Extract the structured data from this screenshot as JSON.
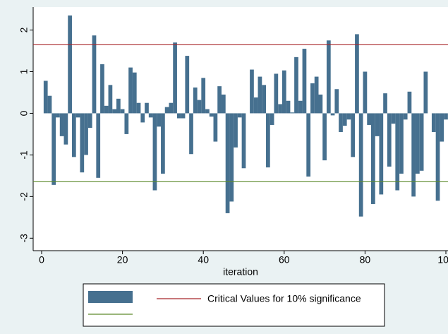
{
  "chart_data": {
    "type": "bar",
    "x": [
      1,
      2,
      3,
      4,
      5,
      6,
      7,
      8,
      9,
      10,
      11,
      12,
      13,
      14,
      15,
      16,
      17,
      18,
      19,
      20,
      21,
      22,
      23,
      24,
      25,
      26,
      27,
      28,
      29,
      30,
      31,
      32,
      33,
      34,
      35,
      36,
      37,
      38,
      39,
      40,
      41,
      42,
      43,
      44,
      45,
      46,
      47,
      48,
      49,
      50,
      51,
      52,
      53,
      54,
      55,
      56,
      57,
      58,
      59,
      60,
      61,
      62,
      63,
      64,
      65,
      66,
      67,
      68,
      69,
      70,
      71,
      72,
      73,
      74,
      75,
      76,
      77,
      78,
      79,
      80,
      81,
      82,
      83,
      84,
      85,
      86,
      87,
      88,
      89,
      90,
      91,
      92,
      93,
      94,
      95,
      96,
      97,
      98,
      99,
      100
    ],
    "series": [
      {
        "color": "#46708f",
        "values": [
          0.78,
          0.42,
          -1.72,
          -0.1,
          -0.55,
          -0.75,
          2.35,
          -1.05,
          -0.1,
          -1.42,
          -1.0,
          -0.35,
          1.87,
          -1.55,
          1.18,
          0.18,
          0.68,
          0.1,
          0.35,
          0.1,
          -0.5,
          1.1,
          0.98,
          0.25,
          -0.22,
          0.25,
          -0.1,
          -1.85,
          -0.32,
          -1.45,
          0.15,
          0.25,
          1.7,
          -0.12,
          -0.12,
          1.38,
          -0.98,
          0.62,
          0.32,
          0.85,
          0.1,
          -0.08,
          -0.68,
          0.65,
          0.45,
          -2.4,
          -2.12,
          -0.82,
          -0.1,
          -1.32,
          0,
          1.05,
          0.38,
          0.88,
          0.68,
          -1.3,
          -0.28,
          0.95,
          0.22,
          1.03,
          0.3,
          0.02,
          1.35,
          0.3,
          1.55,
          -1.52,
          0.72,
          0.88,
          0.45,
          -1.13,
          1.75,
          -0.05,
          0.58,
          -0.45,
          -0.3,
          -0.15,
          -1.05,
          1.9,
          -2.48,
          1.0,
          -0.28,
          -2.18,
          -0.55,
          -1.95,
          0.48,
          -1.28,
          -0.25,
          -1.85,
          -1.45,
          -0.15,
          0.52,
          -2.0,
          -1.45,
          -1.38,
          1.0,
          0,
          -0.45,
          -2.1,
          -0.68,
          -0.15
        ]
      }
    ],
    "reference_lines": [
      {
        "value": 1.645,
        "color": "#a8262a",
        "name": "Critical Values for 10% significance"
      },
      {
        "value": -1.645,
        "color": "#5d8a2b"
      }
    ],
    "xlabel": "iteration",
    "xlim": [
      0,
      100
    ],
    "xticks": [
      0,
      20,
      40,
      60,
      80,
      100
    ],
    "ylim": [
      -3.3,
      2.45
    ],
    "yticks": [
      -3,
      -2,
      -1,
      0,
      1,
      2
    ]
  }
}
